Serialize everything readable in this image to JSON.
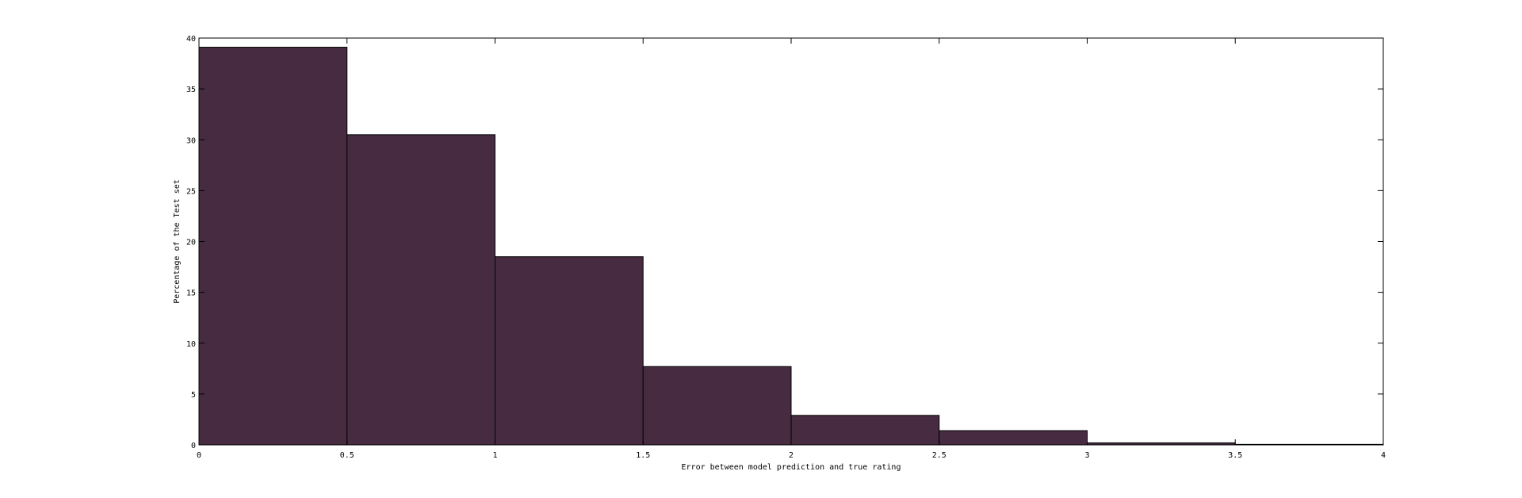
{
  "chart_data": {
    "type": "bar",
    "title": "",
    "xlabel": "Error between model prediction and true rating",
    "ylabel": "Percentage of the Test set",
    "bin_edges": [
      0,
      0.5,
      1,
      1.5,
      2,
      2.5,
      3,
      3.5,
      4
    ],
    "values": [
      39.1,
      30.5,
      18.5,
      7.7,
      2.9,
      1.4,
      0.2,
      0.05
    ],
    "xlim": [
      0,
      4
    ],
    "ylim": [
      0,
      40
    ],
    "xticks": [
      0,
      0.5,
      1,
      1.5,
      2,
      2.5,
      3,
      3.5,
      4
    ],
    "xtick_labels": [
      "0",
      "0.5",
      "1",
      "1.5",
      "2",
      "2.5",
      "3",
      "3.5",
      "4"
    ],
    "yticks": [
      0,
      5,
      10,
      15,
      20,
      25,
      30,
      35,
      40
    ],
    "ytick_labels": [
      "0",
      "5",
      "10",
      "15",
      "20",
      "25",
      "30",
      "35",
      "40"
    ],
    "bar_color": "#472C41",
    "grid": false,
    "legend": "none"
  }
}
